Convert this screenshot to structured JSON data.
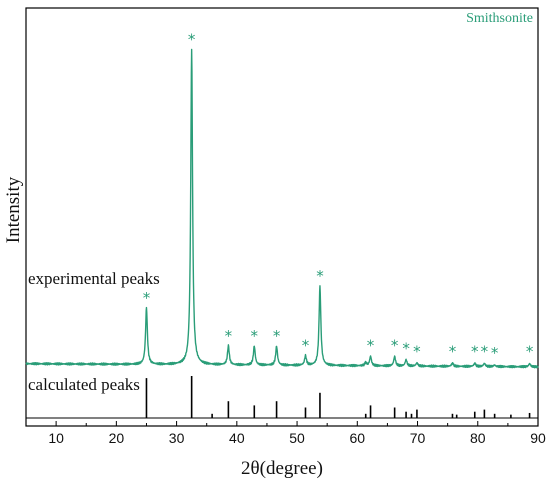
{
  "chart_data": {
    "type": "line",
    "xlabel": "2θ(degree)",
    "ylabel": "Intensity",
    "xlim": [
      5,
      90
    ],
    "x_ticks": [
      10,
      20,
      30,
      40,
      50,
      60,
      70,
      80,
      90
    ],
    "legend": "Smithsonite",
    "legend_position": "top-right",
    "colors": {
      "series": "#2a9d78",
      "reference": "#000000",
      "axis": "#000000"
    },
    "annotations": [
      "experimental peaks",
      "calculated peaks"
    ],
    "marker_symbol": "*",
    "series": [
      {
        "name": "Smithsonite",
        "kind": "experimental",
        "baseline": 0.02,
        "peaks": [
          {
            "x": 25.0,
            "y": 0.18,
            "starred": true
          },
          {
            "x": 32.5,
            "y": 1.0,
            "starred": true
          },
          {
            "x": 38.6,
            "y": 0.06,
            "starred": true
          },
          {
            "x": 42.9,
            "y": 0.06,
            "starred": true
          },
          {
            "x": 46.6,
            "y": 0.06,
            "starred": true
          },
          {
            "x": 51.4,
            "y": 0.03,
            "starred": true
          },
          {
            "x": 53.8,
            "y": 0.25,
            "starred": true
          },
          {
            "x": 61.4,
            "y": 0.01,
            "starred": false
          },
          {
            "x": 62.2,
            "y": 0.03,
            "starred": true
          },
          {
            "x": 66.2,
            "y": 0.03,
            "starred": true
          },
          {
            "x": 68.1,
            "y": 0.02,
            "starred": true
          },
          {
            "x": 69.9,
            "y": 0.01,
            "starred": true
          },
          {
            "x": 75.8,
            "y": 0.01,
            "starred": true
          },
          {
            "x": 79.5,
            "y": 0.01,
            "starred": true
          },
          {
            "x": 81.1,
            "y": 0.01,
            "starred": true
          },
          {
            "x": 82.8,
            "y": 0.005,
            "starred": true
          },
          {
            "x": 88.6,
            "y": 0.01,
            "starred": true
          }
        ]
      },
      {
        "name": "",
        "kind": "calculated",
        "sticks": [
          {
            "x": 25.0,
            "y": 0.95
          },
          {
            "x": 32.5,
            "y": 1.0
          },
          {
            "x": 35.9,
            "y": 0.1
          },
          {
            "x": 38.6,
            "y": 0.4
          },
          {
            "x": 42.9,
            "y": 0.3
          },
          {
            "x": 46.6,
            "y": 0.4
          },
          {
            "x": 51.4,
            "y": 0.25
          },
          {
            "x": 53.8,
            "y": 0.6
          },
          {
            "x": 61.4,
            "y": 0.1
          },
          {
            "x": 62.2,
            "y": 0.3
          },
          {
            "x": 66.2,
            "y": 0.25
          },
          {
            "x": 68.1,
            "y": 0.15
          },
          {
            "x": 69.0,
            "y": 0.1
          },
          {
            "x": 69.9,
            "y": 0.2
          },
          {
            "x": 75.8,
            "y": 0.1
          },
          {
            "x": 76.5,
            "y": 0.08
          },
          {
            "x": 79.5,
            "y": 0.15
          },
          {
            "x": 81.1,
            "y": 0.2
          },
          {
            "x": 82.8,
            "y": 0.1
          },
          {
            "x": 85.5,
            "y": 0.08
          },
          {
            "x": 88.6,
            "y": 0.12
          }
        ]
      }
    ]
  }
}
